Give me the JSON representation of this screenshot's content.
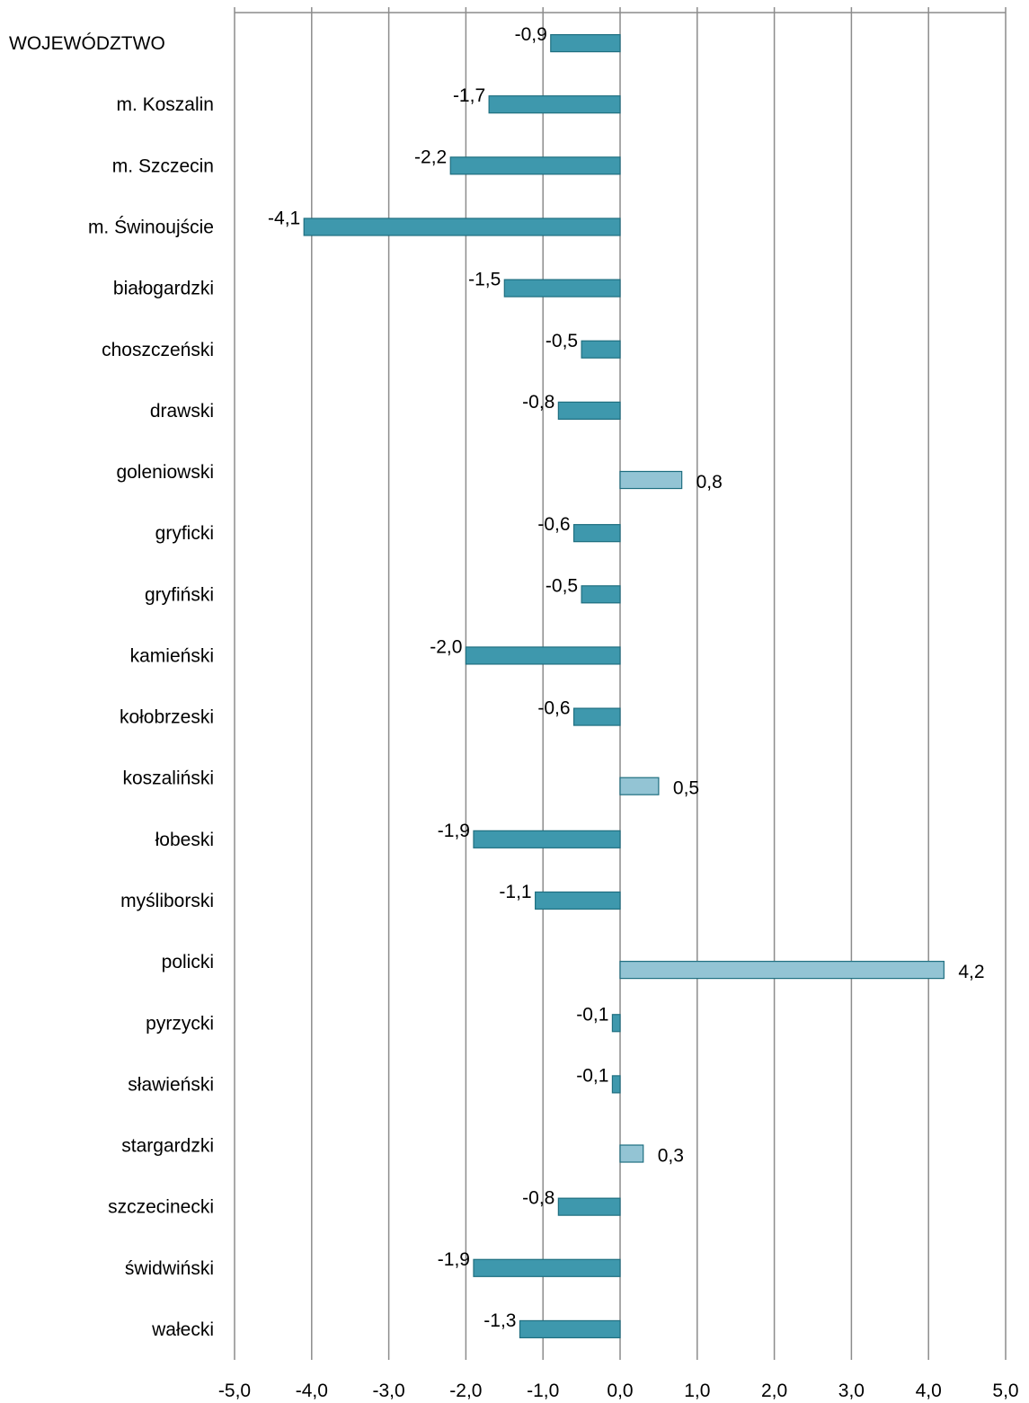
{
  "chart_data": {
    "type": "bar",
    "orientation": "horizontal",
    "title": "",
    "xlabel": "",
    "ylabel": "",
    "categories": [
      "WOJEWÓDZTWO",
      "m. Koszalin",
      "m. Szczecin",
      "m. Świnoujście",
      "białogardzki",
      "choszczeński",
      "drawski",
      "goleniowski",
      "gryficki",
      "gryfiński",
      "kamieński",
      "kołobrzeski",
      "koszaliński",
      "łobeski",
      "myśliborski",
      "policki",
      "pyrzycki",
      "sławieński",
      "stargardzki",
      "szczecinecki",
      "świdwiński",
      "wałecki"
    ],
    "values": [
      -0.9,
      -1.7,
      -2.2,
      -4.1,
      -1.5,
      -0.5,
      -0.8,
      0.8,
      -0.6,
      -0.5,
      -2.0,
      -0.6,
      0.5,
      -1.9,
      -1.1,
      4.2,
      -0.1,
      -0.1,
      0.3,
      -0.8,
      -1.9,
      -1.3
    ],
    "value_labels": [
      "-0,9",
      "-1,7",
      "-2,2",
      "-4,1",
      "-1,5",
      "-0,5",
      "-0,8",
      "0,8",
      "-0,6",
      "-0,5",
      "-2,0",
      "-0,6",
      "0,5",
      "-1,9",
      "-1,1",
      "4,2",
      "-0,1",
      "-0,1",
      "0,3",
      "-0,8",
      "-1,9",
      "-1,3"
    ],
    "xlim": [
      -5,
      5
    ],
    "xticks": [
      "-5,0",
      "-4,0",
      "-3,0",
      "-2,0",
      "-1,0",
      "0,0",
      "1,0",
      "2,0",
      "3,0",
      "4,0",
      "5,0"
    ],
    "grid": "vertical",
    "legend": "none",
    "colors": {
      "negative_fill": "#3e98ad",
      "negative_stroke": "#1f6f80",
      "positive_fill": "#93c4d4",
      "positive_stroke": "#1f6f80",
      "grid": "#8c8c8c",
      "text": "#000000"
    }
  }
}
